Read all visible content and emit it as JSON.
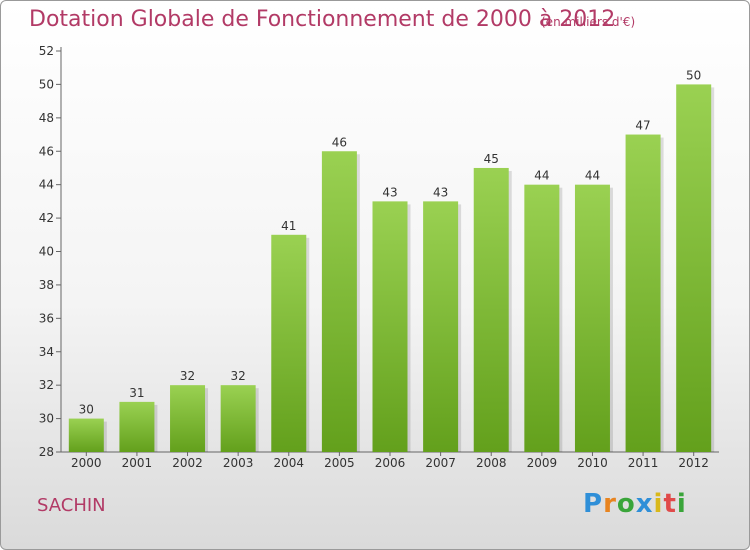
{
  "title": "Dotation Globale de Fonctionnement de 2000 à 2012",
  "unit": "(en milliers d'€)",
  "commune": "SACHIN",
  "logo": "Proxiti",
  "colors": {
    "title": "#b23a66",
    "bar_top": "#9ad152",
    "bar_bottom": "#63a01c",
    "axis": "#666666"
  },
  "chart_data": {
    "type": "bar",
    "categories": [
      "2000",
      "2001",
      "2002",
      "2003",
      "2004",
      "2005",
      "2006",
      "2007",
      "2008",
      "2009",
      "2010",
      "2011",
      "2012"
    ],
    "values": [
      30,
      31,
      32,
      32,
      41,
      46,
      43,
      43,
      45,
      44,
      44,
      47,
      50
    ],
    "ylim": [
      28,
      52
    ],
    "yticks": [
      28,
      30,
      32,
      34,
      36,
      38,
      40,
      42,
      44,
      46,
      48,
      50,
      52
    ],
    "grid": false,
    "data_labels": true
  }
}
